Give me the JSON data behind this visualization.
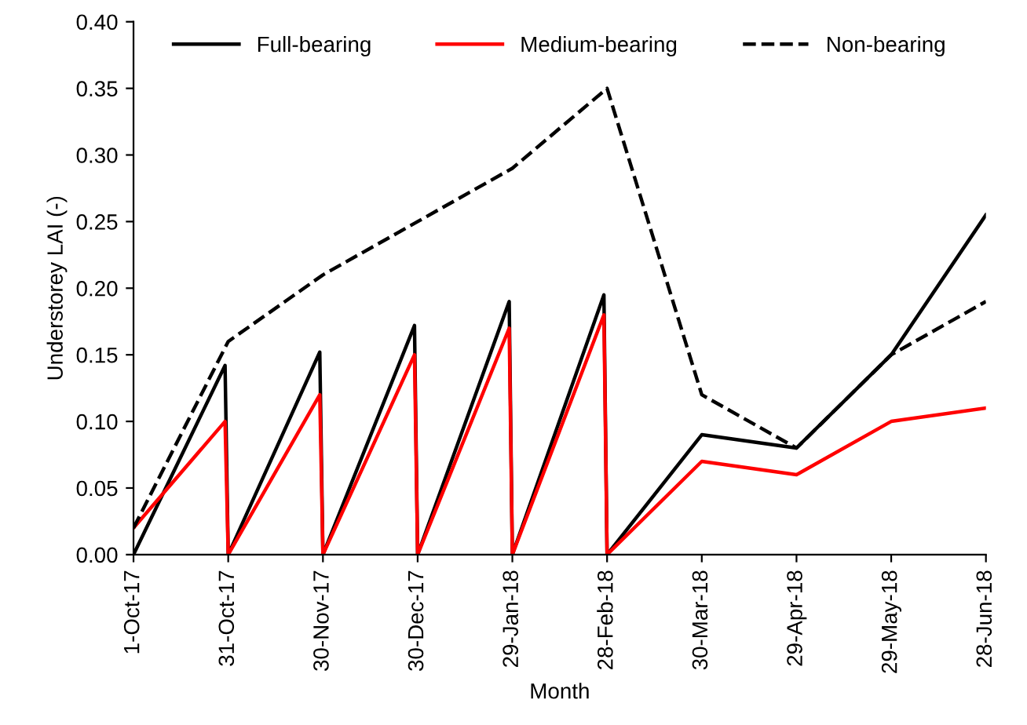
{
  "chart_data": {
    "type": "line",
    "xlabel": "Month",
    "ylabel": "Understorey LAI (-)",
    "series": [
      {
        "name": "Full-bearing",
        "color": "#000000",
        "line_style": "solid",
        "x": [
          "2017-10-01",
          "2017-10-30",
          "2017-10-31",
          "2017-11-29",
          "2017-11-30",
          "2017-12-29",
          "2017-12-30",
          "2018-01-28",
          "2018-01-29",
          "2018-02-27",
          "2018-02-28",
          "2018-03-30",
          "2018-04-29",
          "2018-05-29",
          "2018-06-28"
        ],
        "values": [
          0,
          0.142,
          0,
          0.152,
          0,
          0.172,
          0,
          0.19,
          0,
          0.195,
          0,
          0.09,
          0.08,
          0.15,
          0.255
        ]
      },
      {
        "name": "Medium-bearing",
        "color": "#ff0000",
        "line_style": "solid",
        "x": [
          "2017-10-01",
          "2017-10-30",
          "2017-10-31",
          "2017-11-29",
          "2017-11-30",
          "2017-12-29",
          "2017-12-30",
          "2018-01-28",
          "2018-01-29",
          "2018-02-27",
          "2018-02-28",
          "2018-03-30",
          "2018-04-29",
          "2018-05-29",
          "2018-06-28"
        ],
        "values": [
          0.02,
          0.1,
          0,
          0.12,
          0,
          0.15,
          0,
          0.17,
          0,
          0.18,
          0,
          0.07,
          0.06,
          0.1,
          0.11
        ]
      },
      {
        "name": "Non-bearing",
        "color": "#000000",
        "line_style": "dashed",
        "x": [
          "2017-10-01",
          "2017-10-31",
          "2017-11-30",
          "2017-12-30",
          "2018-01-29",
          "2018-02-28",
          "2018-03-30",
          "2018-04-29",
          "2018-05-29",
          "2018-06-28"
        ],
        "values": [
          0.02,
          0.16,
          0.21,
          0.25,
          0.29,
          0.35,
          0.12,
          0.08,
          0.15,
          0.19
        ]
      }
    ],
    "xlim": [
      "2017-10-01",
      "2018-06-28"
    ],
    "xticks": [
      {
        "value": "2017-10-01",
        "label": "1-Oct-17"
      },
      {
        "value": "2017-10-31",
        "label": "31-Oct-17"
      },
      {
        "value": "2017-11-30",
        "label": "30-Nov-17"
      },
      {
        "value": "2017-12-30",
        "label": "30-Dec-17"
      },
      {
        "value": "2018-01-29",
        "label": "29-Jan-18"
      },
      {
        "value": "2018-02-28",
        "label": "28-Feb-18"
      },
      {
        "value": "2018-03-30",
        "label": "30-Mar-18"
      },
      {
        "value": "2018-04-29",
        "label": "29-Apr-18"
      },
      {
        "value": "2018-05-29",
        "label": "29-May-18"
      },
      {
        "value": "2018-06-28",
        "label": "28-Jun-18"
      }
    ],
    "ylim": [
      0,
      0.4
    ],
    "yticks": [
      {
        "value": 0,
        "label": "0.00"
      },
      {
        "value": 0.05,
        "label": "0.05"
      },
      {
        "value": 0.1,
        "label": "0.10"
      },
      {
        "value": 0.15,
        "label": "0.15"
      },
      {
        "value": 0.2,
        "label": "0.20"
      },
      {
        "value": 0.25,
        "label": "0.25"
      },
      {
        "value": 0.3,
        "label": "0.30"
      },
      {
        "value": 0.35,
        "label": "0.35"
      },
      {
        "value": 0.4,
        "label": "0.40"
      }
    ],
    "grid": false,
    "legend": "top"
  }
}
